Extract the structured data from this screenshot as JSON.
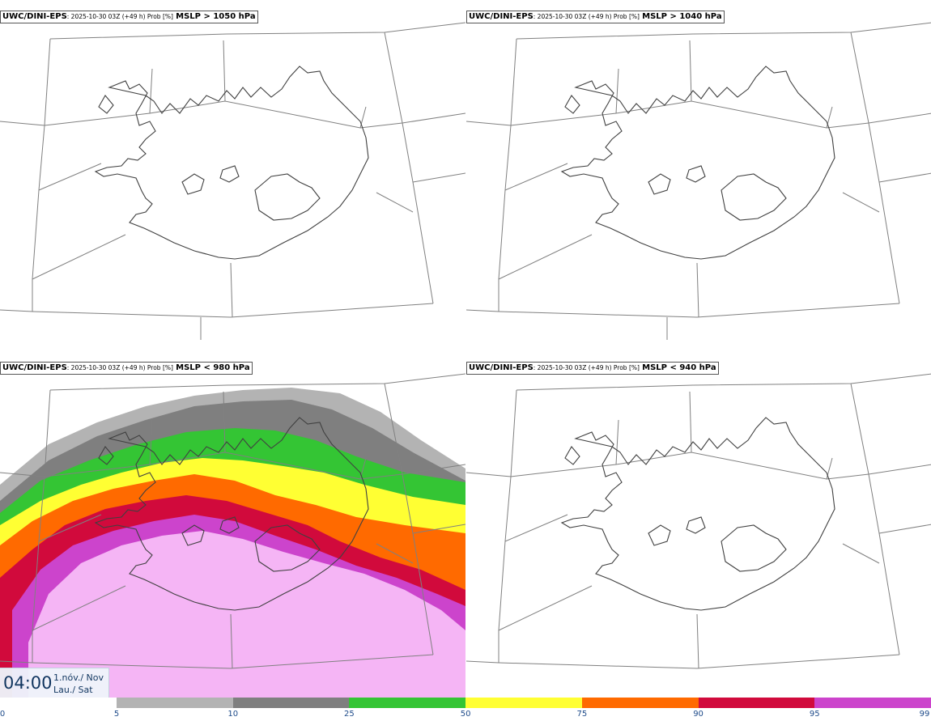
{
  "panels": [
    {
      "model": "UWC/DINI-EPS",
      "run_info": ": 2025-10-30 03Z (+49 h) Prob [%]",
      "field": "MSLP > 1050 hPa",
      "filled": false
    },
    {
      "model": "UWC/DINI-EPS",
      "run_info": ": 2025-10-30 03Z (+49 h) Prob [%]",
      "field": "MSLP > 1040 hPa",
      "filled": false
    },
    {
      "model": "UWC/DINI-EPS",
      "run_info": ": 2025-10-30 03Z (+49 h) Prob [%]",
      "field": "MSLP < 980 hPa",
      "filled": true
    },
    {
      "model": "UWC/DINI-EPS",
      "run_info": ": 2025-10-30 03Z (+49 h) Prob [%]",
      "field": "MSLP < 940 hPa",
      "filled": false
    }
  ],
  "valid_time": {
    "time": "04:00",
    "date_line1": "1.nóv./ Nov",
    "date_line2": "Lau./ Sat"
  },
  "legend": {
    "ticks": [
      "0",
      "5",
      "10",
      "25",
      "50",
      "75",
      "90",
      "95",
      "99"
    ],
    "colors": [
      "#ffffff",
      "#b3b3b3",
      "#7f7f7f",
      "#34c534",
      "#ffff33",
      "#ff6a00",
      "#d10a3c",
      "#cc44cc",
      "#f5b5f5"
    ]
  }
}
